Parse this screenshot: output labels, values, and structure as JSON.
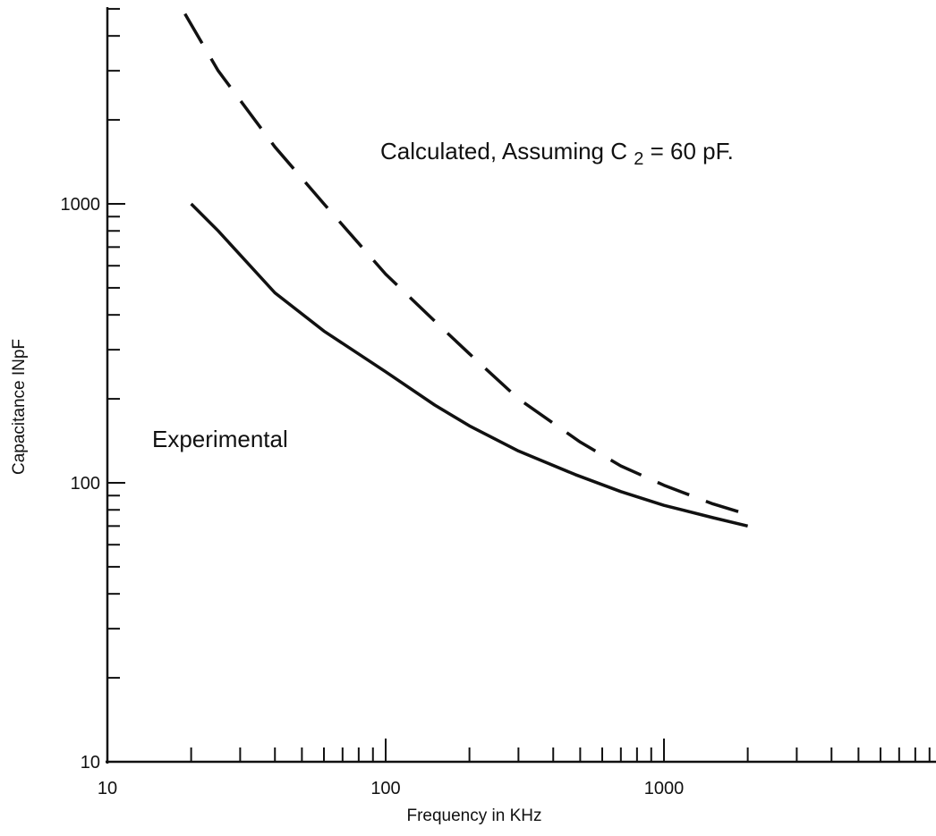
{
  "chart_data": {
    "type": "line",
    "title": "",
    "xlabel": "Frequency in KHz",
    "ylabel": "Capacitance INpF",
    "xscale": "log",
    "yscale": "log",
    "xlim": [
      10,
      9000
    ],
    "ylim": [
      10,
      5500
    ],
    "x_tick_labels": [
      {
        "value": 10,
        "label": "10"
      },
      {
        "value": 100,
        "label": "100"
      },
      {
        "value": 1000,
        "label": "1000"
      }
    ],
    "y_tick_labels": [
      {
        "value": 10,
        "label": "10"
      },
      {
        "value": 100,
        "label": "100"
      },
      {
        "value": 1000,
        "label": "1000"
      }
    ],
    "grid": false,
    "legend": "none",
    "series": [
      {
        "style": "dashed",
        "color": "#111111",
        "x": [
          19,
          25,
          40,
          60,
          100,
          150,
          200,
          300,
          500,
          700,
          1000,
          1500,
          2000
        ],
        "y": [
          4800,
          3000,
          1600,
          1000,
          560,
          380,
          290,
          200,
          140,
          115,
          98,
          84,
          77
        ]
      },
      {
        "style": "solid",
        "color": "#111111",
        "x": [
          20,
          25,
          40,
          60,
          100,
          150,
          200,
          300,
          480,
          700,
          1000,
          1500,
          2000
        ],
        "y": [
          1000,
          800,
          480,
          350,
          250,
          190,
          160,
          130,
          107,
          93,
          83,
          75,
          70
        ]
      }
    ],
    "annotations": [
      {
        "text_parts": [
          "Calculated, Assuming C",
          "2",
          " = 60 pF."
        ],
        "x": 18000,
        "y": 2000
      },
      {
        "text": "Experimental",
        "x": 16,
        "y": 180
      }
    ]
  }
}
